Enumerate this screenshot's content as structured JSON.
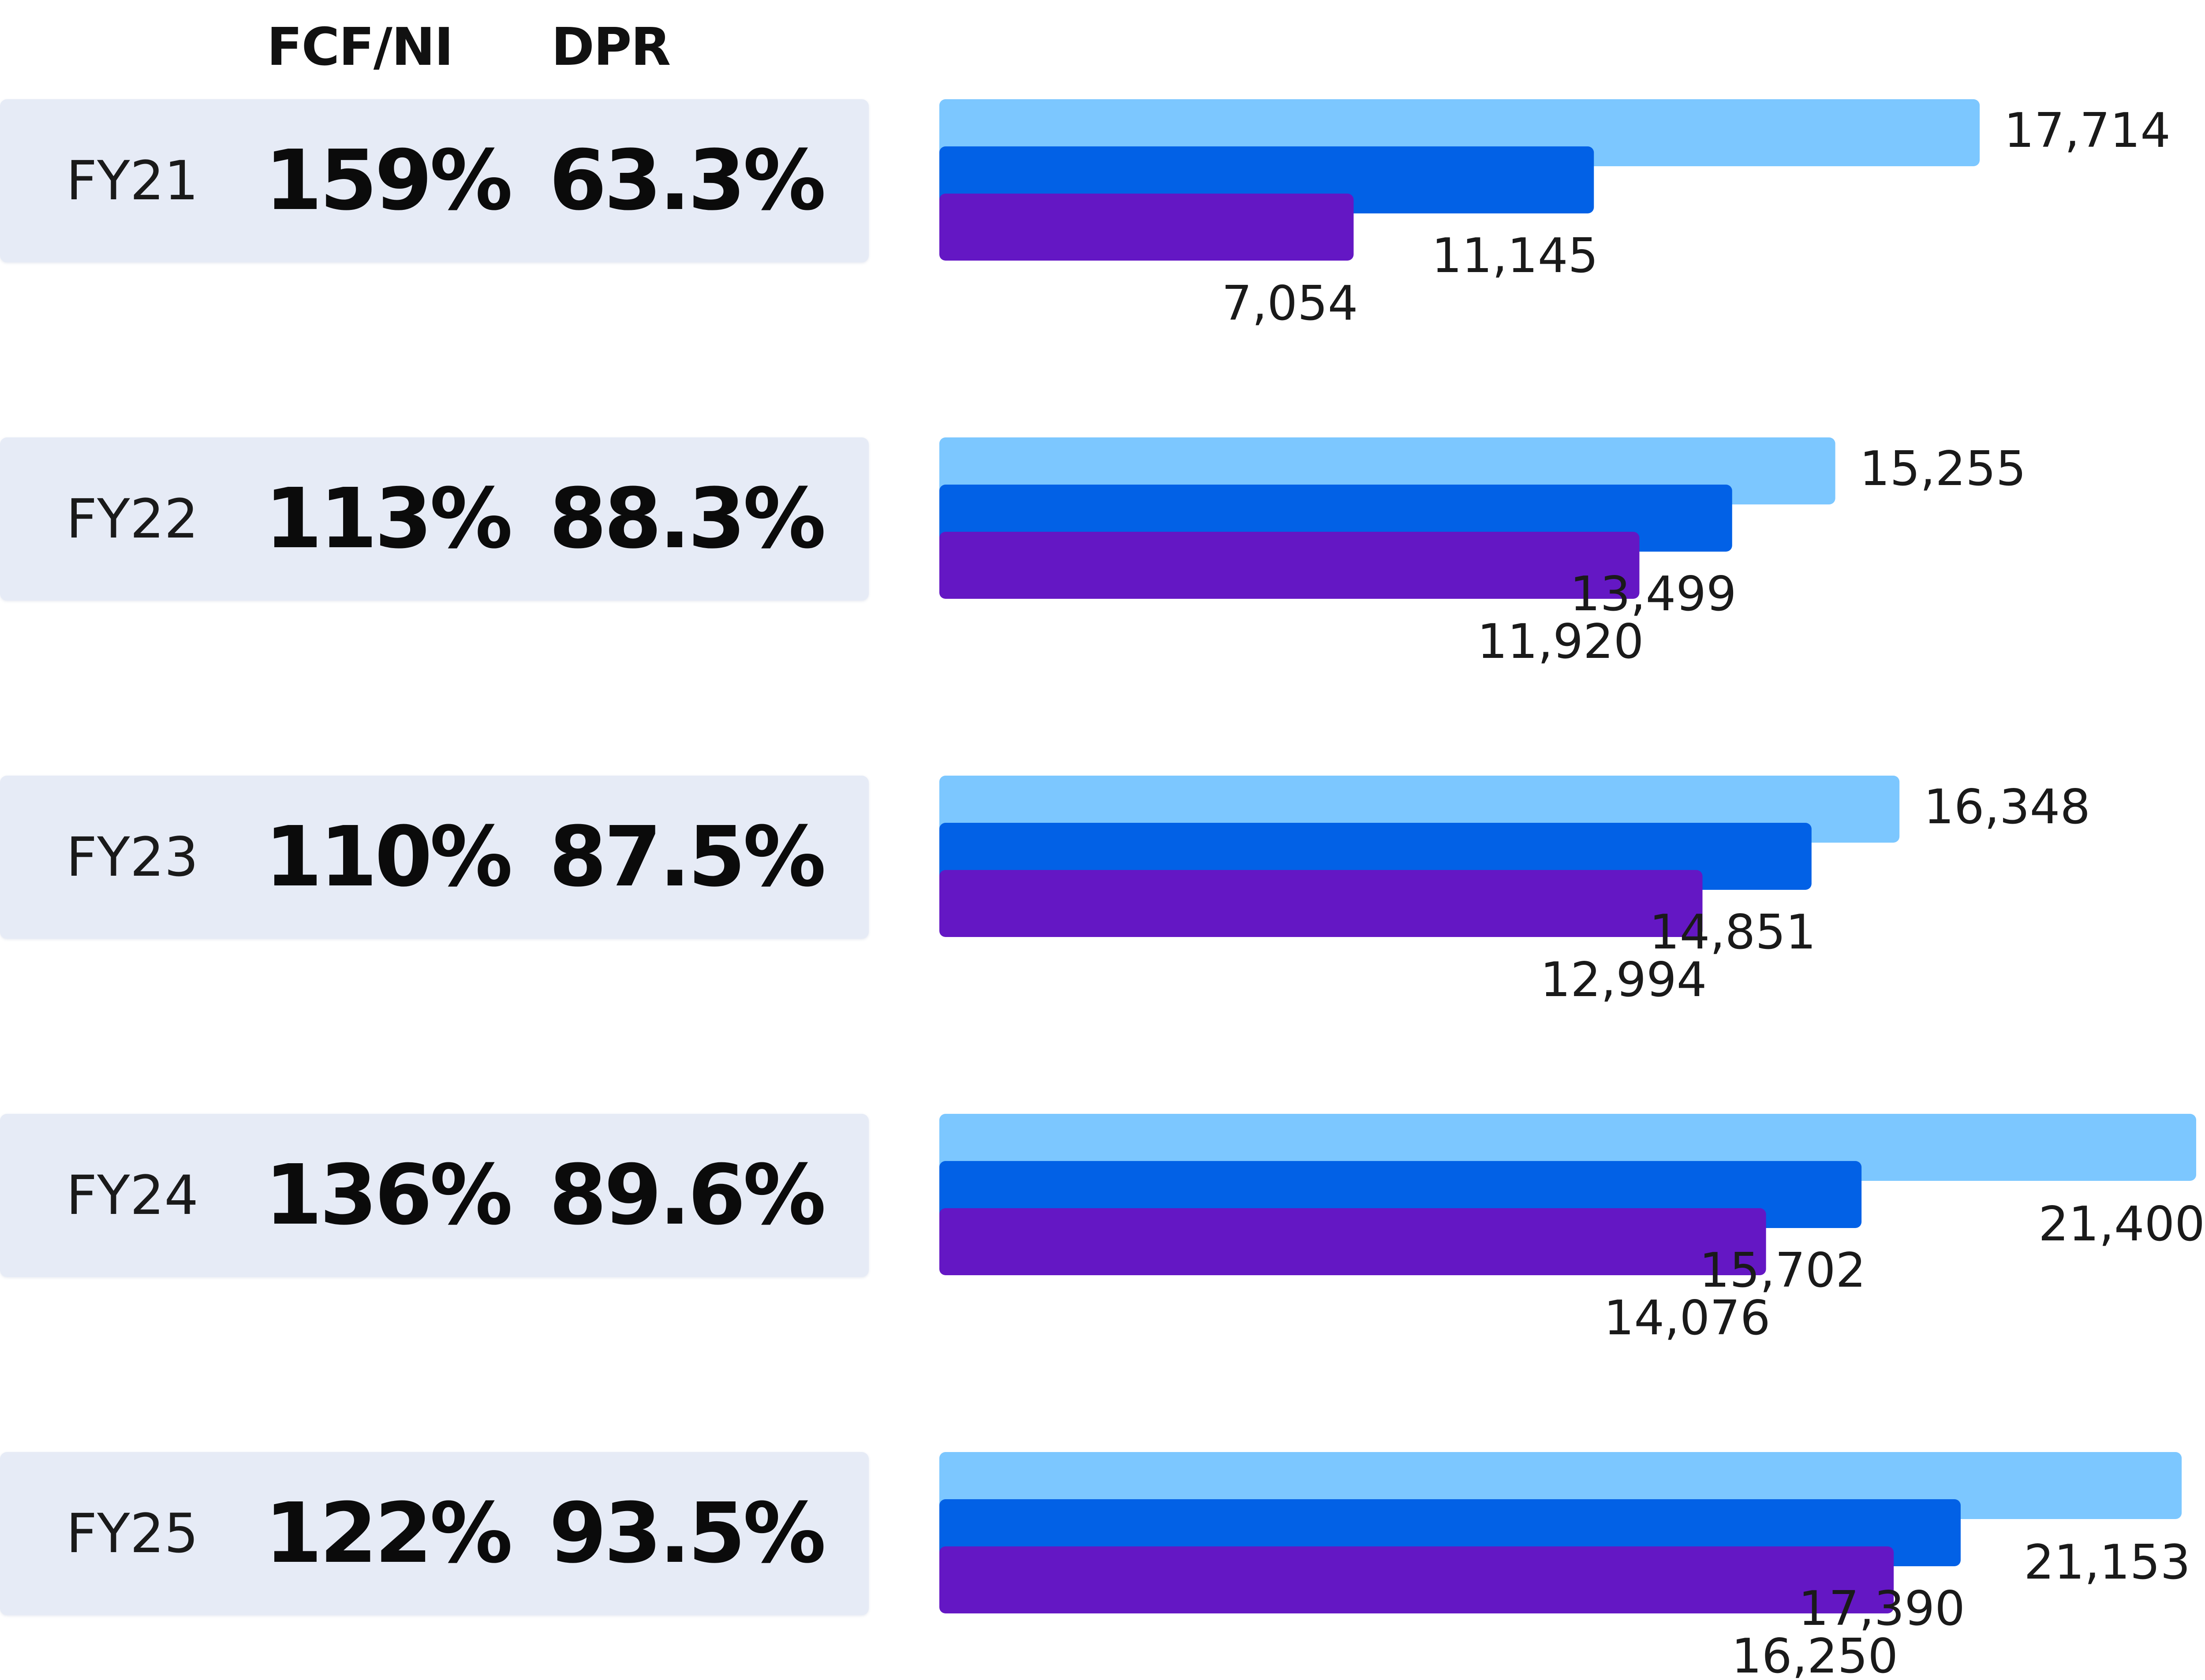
{
  "header": {
    "fcf_ni_label": "FCF/NI",
    "dpr_label": "DPR"
  },
  "colors": {
    "panel_bg": "#e6ebf6",
    "bar_light_blue": "#7cc7ff",
    "bar_blue": "#0261e6",
    "bar_purple": "#6417c4"
  },
  "rows": [
    {
      "label": "FY21",
      "fcf_ni": "159%",
      "dpr": "63.3%"
    },
    {
      "label": "FY22",
      "fcf_ni": "113%",
      "dpr": "88.3%"
    },
    {
      "label": "FY23",
      "fcf_ni": "110%",
      "dpr": "87.5%"
    },
    {
      "label": "FY24",
      "fcf_ni": "136%",
      "dpr": "89.6%"
    },
    {
      "label": "FY25",
      "fcf_ni": "122%",
      "dpr": "93.5%"
    }
  ],
  "chart_data": {
    "type": "bar",
    "orientation": "horizontal",
    "categories": [
      "FY21",
      "FY22",
      "FY23",
      "FY24",
      "FY25"
    ],
    "series": [
      {
        "values": [
          17714,
          15255,
          16348,
          21400,
          21153
        ],
        "labels": [
          "17,714",
          "15,255",
          "16,348",
          "21,400",
          "21,153"
        ],
        "color": "#7cc7ff"
      },
      {
        "values": [
          11145,
          13499,
          14851,
          15702,
          17390
        ],
        "labels": [
          "11,145",
          "13,499",
          "14,851",
          "15,702",
          "17,390"
        ],
        "color": "#0261e6"
      },
      {
        "values": [
          7054,
          11920,
          12994,
          14076,
          16250
        ],
        "labels": [
          "7,054",
          "11,920",
          "12,994",
          "14,076",
          "16,250"
        ],
        "color": "#6417c4"
      }
    ],
    "grid": false,
    "legend": "none"
  }
}
